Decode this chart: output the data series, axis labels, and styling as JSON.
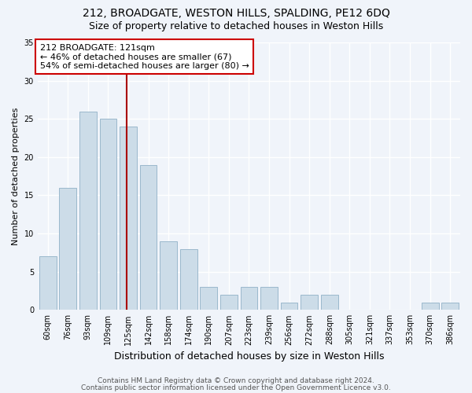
{
  "title": "212, BROADGATE, WESTON HILLS, SPALDING, PE12 6DQ",
  "subtitle": "Size of property relative to detached houses in Weston Hills",
  "xlabel": "Distribution of detached houses by size in Weston Hills",
  "ylabel": "Number of detached properties",
  "categories": [
    "60sqm",
    "76sqm",
    "93sqm",
    "109sqm",
    "125sqm",
    "142sqm",
    "158sqm",
    "174sqm",
    "190sqm",
    "207sqm",
    "223sqm",
    "239sqm",
    "256sqm",
    "272sqm",
    "288sqm",
    "305sqm",
    "321sqm",
    "337sqm",
    "353sqm",
    "370sqm",
    "386sqm"
  ],
  "values": [
    7,
    16,
    26,
    25,
    24,
    19,
    9,
    8,
    3,
    2,
    3,
    3,
    1,
    2,
    2,
    0,
    0,
    0,
    0,
    1,
    1
  ],
  "bar_color": "#ccdce8",
  "bar_edge_color": "#9ab8cc",
  "vline_color": "#aa0000",
  "annotation_text": "212 BROADGATE: 121sqm\n← 46% of detached houses are smaller (67)\n54% of semi-detached houses are larger (80) →",
  "annotation_box_color": "#ffffff",
  "annotation_box_edge": "#cc0000",
  "ylim": [
    0,
    35
  ],
  "yticks": [
    0,
    5,
    10,
    15,
    20,
    25,
    30,
    35
  ],
  "footer1": "Contains HM Land Registry data © Crown copyright and database right 2024.",
  "footer2": "Contains public sector information licensed under the Open Government Licence v3.0.",
  "background_color": "#f0f4fa",
  "plot_background": "#f0f4fa",
  "grid_color": "#ffffff",
  "title_fontsize": 10,
  "subtitle_fontsize": 9,
  "xlabel_fontsize": 9,
  "ylabel_fontsize": 8,
  "tick_fontsize": 7,
  "annotation_fontsize": 8,
  "footer_fontsize": 6.5,
  "vline_pos": 3.93
}
